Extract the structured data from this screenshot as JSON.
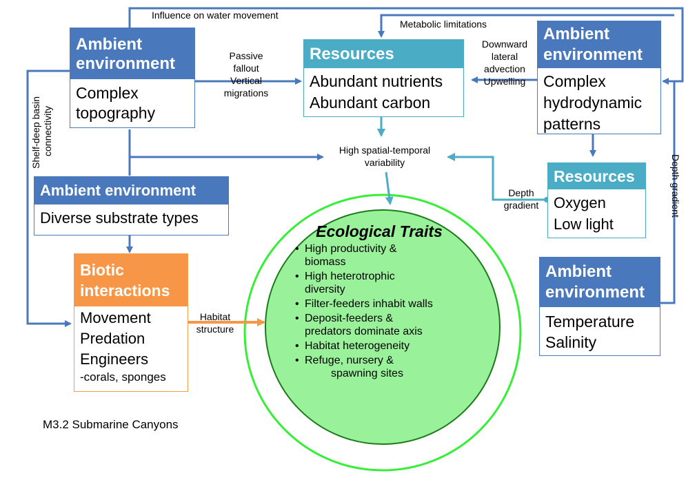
{
  "boxes": {
    "ambient_topo": {
      "header": [
        "Ambient",
        "environment"
      ],
      "body": [
        "Complex",
        "topography"
      ]
    },
    "resources_top": {
      "header": [
        "Resources"
      ],
      "body": [
        "Abundant nutrients",
        "Abundant carbon"
      ]
    },
    "ambient_hydro": {
      "header": [
        "Ambient",
        "environment"
      ],
      "body": [
        "Complex",
        "hydrodynamic",
        "patterns"
      ]
    },
    "ambient_substrate": {
      "header": [
        "Ambient environment"
      ],
      "body": [
        "Diverse substrate types"
      ]
    },
    "resources_oxygen": {
      "header": [
        "Resources"
      ],
      "body": [
        "Oxygen",
        "Low light"
      ]
    },
    "biotic": {
      "header": [
        "Biotic",
        "interactions"
      ],
      "body": [
        "Movement",
        "Predation",
        "Engineers"
      ],
      "subnote": "-corals, sponges"
    },
    "ambient_temp": {
      "header": [
        "Ambient",
        "environment"
      ],
      "body": [
        "Temperature",
        "Salinity"
      ]
    }
  },
  "labels": {
    "influence": "Influence on water movement",
    "metabolic": "Metabolic limitations",
    "passive": [
      "Passive",
      "fallout",
      "Vertical",
      "migrations"
    ],
    "downward": [
      "Downward",
      "lateral",
      "advection",
      "Upwelling"
    ],
    "variability": [
      "High spatial-temporal",
      "variability"
    ],
    "depth_gradient_left": [
      "Depth",
      "gradient"
    ],
    "habitat": [
      "Habitat",
      "structure"
    ],
    "shelf": [
      "Shelf-deep basin",
      "connectivity"
    ],
    "depth_gradient_right": "Depth gradient"
  },
  "traits": {
    "title": "Ecological Traits",
    "items": [
      [
        "High productivity &",
        "biomass"
      ],
      [
        "High heterotrophic",
        "diversity"
      ],
      [
        "Filter-feeders inhabit walls"
      ],
      [
        "Deposit-feeders &",
        "predators dominate axis"
      ],
      [
        "Habitat heterogeneity"
      ],
      [
        "Refuge, nursery &",
        "spawning sites"
      ]
    ]
  },
  "caption": "M3.2 Submarine Canyons",
  "colors": {
    "blue_arrow": "#4a78bd",
    "teal_arrow": "#4aacc5",
    "orange_arrow": "#f79646",
    "circle_fill": "#99f299",
    "circle_border": "#1a7a1a",
    "outer_ring": "#35ef35"
  }
}
